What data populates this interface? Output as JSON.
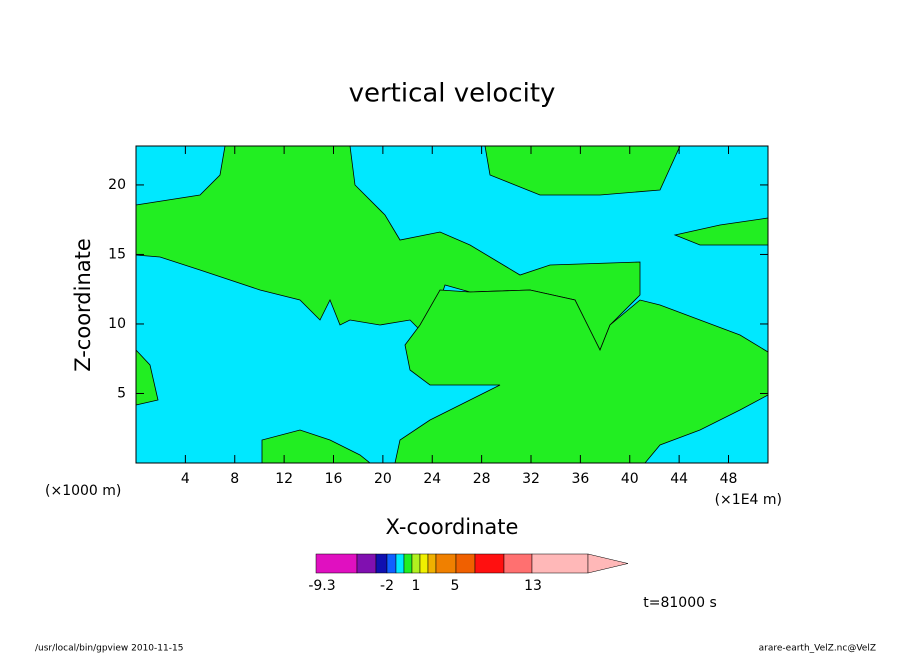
{
  "chart_data": {
    "type": "contour",
    "title": "vertical velocity",
    "x_label": "X-coordinate",
    "y_label": "Z-coordinate",
    "x_unit_left": "(×1000 m)",
    "x_unit_right": "(×1E4 m)",
    "xlim": [
      0,
      51.2
    ],
    "xticks": [
      4,
      8,
      12,
      16,
      20,
      24,
      28,
      32,
      36,
      40,
      44,
      48
    ],
    "ylim": [
      0,
      22.8
    ],
    "yticks": [
      5,
      10,
      15,
      20
    ],
    "colorbar_colors": [
      "#e010c0",
      "#8010b0",
      "#1010b0",
      "#1060ff",
      "#00e8ff",
      "#22ee22",
      "#b0f020",
      "#f0f000",
      "#f0b000",
      "#f08000",
      "#f06000",
      "#ff1010",
      "#ff7070",
      "#ffb8b8"
    ],
    "colorbar_labels": [
      -9.3,
      -2,
      1,
      5,
      13
    ],
    "time_label": "t=81000 s",
    "footer_left": "/usr/local/bin/gpview  2010-11-15",
    "footer_right": "arare-earth_VelZ.nc@VelZ"
  }
}
